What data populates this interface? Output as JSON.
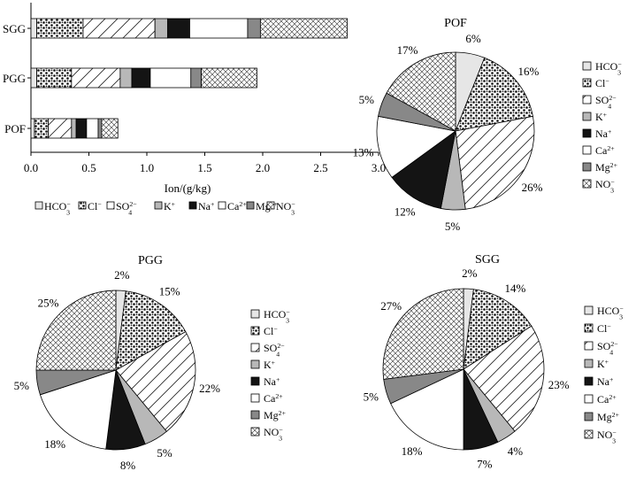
{
  "chart_data": [
    {
      "type": "bar",
      "stacked": true,
      "orientation": "horizontal",
      "categories": [
        "SGG",
        "PGG",
        "POF"
      ],
      "series": [
        {
          "name": "HCO3-",
          "values": [
            0.05,
            0.05,
            0.03
          ]
        },
        {
          "name": "Cl-",
          "values": [
            0.4,
            0.3,
            0.12
          ]
        },
        {
          "name": "SO42-",
          "values": [
            0.62,
            0.42,
            0.2
          ]
        },
        {
          "name": "K+",
          "values": [
            0.11,
            0.1,
            0.04
          ]
        },
        {
          "name": "Na+",
          "values": [
            0.19,
            0.16,
            0.09
          ]
        },
        {
          "name": "Ca2+",
          "values": [
            0.5,
            0.35,
            0.1
          ]
        },
        {
          "name": "Mg2+",
          "values": [
            0.11,
            0.09,
            0.03
          ]
        },
        {
          "name": "NO3-",
          "values": [
            0.75,
            0.48,
            0.14
          ]
        }
      ],
      "xlabel": "Ion/(g/kg)",
      "xlim": [
        0,
        3.0
      ],
      "xticks": [
        "0.0",
        "0.5",
        "1.0",
        "1.5",
        "2.0",
        "2.5",
        "3.0"
      ],
      "grid": false,
      "legend_position": "bottom"
    },
    {
      "type": "pie",
      "title": "POF",
      "labels": [
        "HCO3-",
        "Cl-",
        "SO42-",
        "K+",
        "Na+",
        "Ca2+",
        "Mg2+",
        "NO3-"
      ],
      "values": [
        6,
        16,
        26,
        5,
        12,
        13,
        5,
        17
      ],
      "data_labels": [
        "6%",
        "16%",
        "26%",
        "5%",
        "12%",
        "13%",
        "5%",
        "17%"
      ],
      "legend_position": "right"
    },
    {
      "type": "pie",
      "title": "PGG",
      "labels": [
        "HCO3-",
        "Cl-",
        "SO42-",
        "K+",
        "Na+",
        "Ca2+",
        "Mg2+",
        "NO3-"
      ],
      "values": [
        2,
        15,
        22,
        5,
        8,
        18,
        5,
        25
      ],
      "data_labels": [
        "2%",
        "15%",
        "22%",
        "5%",
        "8%",
        "18%",
        "5%",
        "25%"
      ],
      "legend_position": "right"
    },
    {
      "type": "pie",
      "title": "SGG",
      "labels": [
        "HCO3-",
        "Cl-",
        "SO42-",
        "K+",
        "Na+",
        "Ca2+",
        "Mg2+",
        "NO3-"
      ],
      "values": [
        2,
        14,
        23,
        4,
        7,
        18,
        5,
        27
      ],
      "data_labels": [
        "2%",
        "14%",
        "23%",
        "4%",
        "7%",
        "18%",
        "5%",
        "27%"
      ],
      "legend_position": "right"
    }
  ],
  "ion_legend": [
    {
      "base": "HCO",
      "sub": "3",
      "sup": "−",
      "fill": "#e6e6e6",
      "pattern": "none"
    },
    {
      "base": "Cl",
      "sub": "",
      "sup": "−",
      "fill": "#ffffff",
      "pattern": "dots"
    },
    {
      "base": "SO",
      "sub": "4",
      "sup": "2−",
      "fill": "#ffffff",
      "pattern": "diag"
    },
    {
      "base": "K",
      "sub": "",
      "sup": "+",
      "fill": "#b8b8b8",
      "pattern": "none"
    },
    {
      "base": "Na",
      "sub": "",
      "sup": "+",
      "fill": "#141414",
      "pattern": "none"
    },
    {
      "base": "Ca",
      "sub": "",
      "sup": "2+",
      "fill": "#ffffff",
      "pattern": "none"
    },
    {
      "base": "Mg",
      "sub": "",
      "sup": "2+",
      "fill": "#888888",
      "pattern": "none"
    },
    {
      "base": "NO",
      "sub": "3",
      "sup": "−",
      "fill": "#ffffff",
      "pattern": "cross"
    }
  ]
}
